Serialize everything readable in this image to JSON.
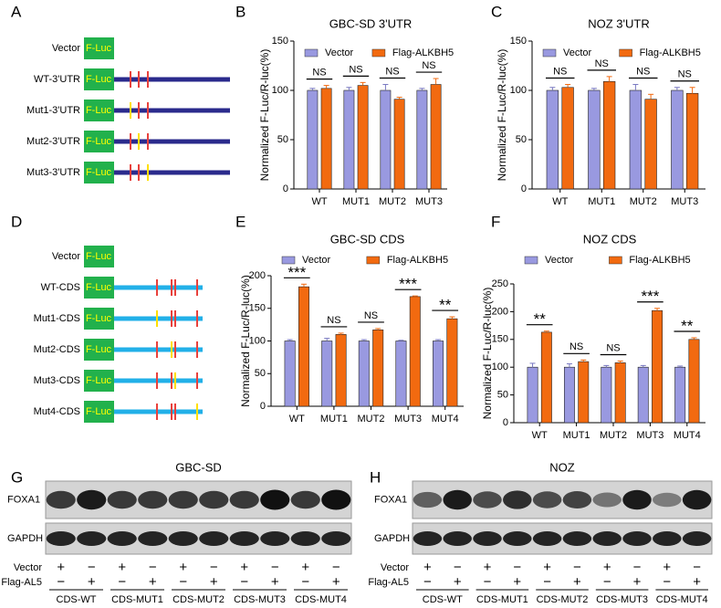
{
  "panels": [
    "A",
    "B",
    "C",
    "D",
    "E",
    "F",
    "G",
    "H"
  ],
  "constructs_utr": {
    "luc": "F-Luc",
    "names": [
      "Vector",
      "WT-3'UTR",
      "Mut1-3'UTR",
      "Mut2-3'UTR",
      "Mut3-3'UTR"
    ]
  },
  "constructs_cds": {
    "luc": "F-Luc",
    "names": [
      "Vector",
      "WT-CDS",
      "Mut1-CDS",
      "Mut2-CDS",
      "Mut3-CDS",
      "Mut4-CDS"
    ]
  },
  "chart_data": [
    {
      "type": "bar",
      "title": "GBC-SD 3'UTR",
      "y_label": "Normalized F-Luc/R-luc(%)",
      "categories": [
        "WT",
        "MUT1",
        "MUT2",
        "MUT3"
      ],
      "series": [
        {
          "name": "Vector",
          "color": "#9999e0",
          "values": [
            100,
            100,
            100,
            100
          ],
          "errors": [
            2,
            3,
            6,
            2
          ]
        },
        {
          "name": "Flag-ALKBH5",
          "color": "#f26a10",
          "values": [
            102,
            105,
            91,
            106
          ],
          "errors": [
            3,
            3,
            2,
            6
          ]
        }
      ],
      "annotations": [
        "NS",
        "NS",
        "NS",
        "NS"
      ],
      "ylim": [
        0,
        150
      ],
      "yticks": [
        0,
        50,
        100,
        150
      ]
    },
    {
      "type": "bar",
      "title": "NOZ 3'UTR",
      "y_label": "Normalized F-Luc/R-luc(%)",
      "categories": [
        "WT",
        "MUT1",
        "MUT2",
        "MUT3"
      ],
      "series": [
        {
          "name": "Vector",
          "color": "#9999e0",
          "values": [
            100,
            100,
            100,
            100
          ],
          "errors": [
            3,
            2,
            6,
            3
          ]
        },
        {
          "name": "Flag-ALKBH5",
          "color": "#f26a10",
          "values": [
            103,
            109,
            91,
            97
          ],
          "errors": [
            3,
            5,
            5,
            6
          ]
        }
      ],
      "annotations": [
        "NS",
        "NS",
        "NS",
        "NS"
      ],
      "ylim": [
        0,
        150
      ],
      "yticks": [
        0,
        50,
        100,
        150
      ]
    },
    {
      "type": "bar",
      "title": "GBC-SD CDS",
      "y_label": "Normalized F-Luc/R-luc(%)",
      "categories": [
        "WT",
        "MUT1",
        "MUT2",
        "MUT3",
        "MUT4"
      ],
      "series": [
        {
          "name": "Vector",
          "color": "#9999e0",
          "values": [
            100,
            100,
            100,
            100,
            100
          ],
          "errors": [
            2,
            4,
            2,
            1,
            2
          ]
        },
        {
          "name": "Flag-ALKBH5",
          "color": "#f26a10",
          "values": [
            183,
            110,
            117,
            168,
            134
          ],
          "errors": [
            4,
            2,
            2,
            1,
            3
          ]
        }
      ],
      "annotations": [
        "***",
        "NS",
        "NS",
        "***",
        "**"
      ],
      "ylim": [
        0,
        200
      ],
      "yticks": [
        0,
        50,
        100,
        150,
        200
      ]
    },
    {
      "type": "bar",
      "title": "NOZ CDS",
      "y_label": "Normalized F-Luc/R-luc(%)",
      "categories": [
        "WT",
        "MUT1",
        "MUT2",
        "MUT3",
        "MUT4"
      ],
      "series": [
        {
          "name": "Vector",
          "color": "#9999e0",
          "values": [
            100,
            100,
            100,
            100,
            100
          ],
          "errors": [
            7,
            6,
            3,
            3,
            2
          ]
        },
        {
          "name": "Flag-ALKBH5",
          "color": "#f26a10",
          "values": [
            163,
            110,
            108,
            202,
            150
          ],
          "errors": [
            2,
            3,
            3,
            4,
            3
          ]
        }
      ],
      "annotations": [
        "**",
        "NS",
        "NS",
        "***",
        "**"
      ],
      "ylim": [
        0,
        250
      ],
      "yticks": [
        0,
        50,
        100,
        150,
        200,
        250
      ]
    }
  ],
  "blots": [
    {
      "title": "GBC-SD",
      "proteins": [
        "FOXA1",
        "GAPDH"
      ],
      "rows": [
        {
          "label": "Vector",
          "signs": [
            "+",
            "−",
            "+",
            "−",
            "+",
            "−",
            "+",
            "−",
            "+",
            "−"
          ]
        },
        {
          "label": "Flag-AL5",
          "signs": [
            "−",
            "+",
            "−",
            "+",
            "−",
            "+",
            "−",
            "+",
            "−",
            "+"
          ]
        }
      ],
      "groups": [
        "CDS-WT",
        "CDS-MUT1",
        "CDS-MUT2",
        "CDS-MUT3",
        "CDS-MUT4"
      ]
    },
    {
      "title": "NOZ",
      "proteins": [
        "FOXA1",
        "GAPDH"
      ],
      "rows": [
        {
          "label": "Vector",
          "signs": [
            "+",
            "−",
            "+",
            "−",
            "+",
            "−",
            "+",
            "−",
            "+",
            "−"
          ]
        },
        {
          "label": "Flag-AL5",
          "signs": [
            "−",
            "+",
            "−",
            "+",
            "−",
            "+",
            "−",
            "+",
            "−",
            "+"
          ]
        }
      ],
      "groups": [
        "CDS-WT",
        "CDS-MUT1",
        "CDS-MUT2",
        "CDS-MUT3",
        "CDS-MUT4"
      ]
    }
  ]
}
